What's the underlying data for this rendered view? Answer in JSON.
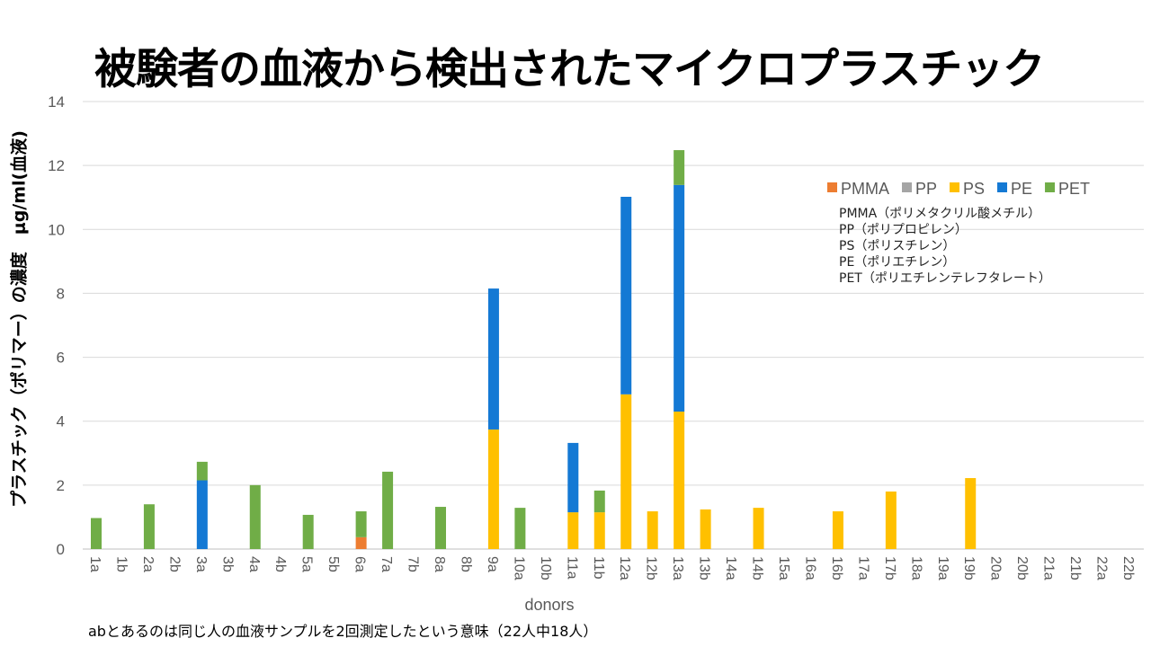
{
  "title": "被験者の血液から検出されたマイクロプラスチック",
  "footnote": "abとあるのは同じ人の血液サンプルを2回測定したという意味（22人中18人）",
  "notes": [
    "PMMA（ポリメタクリル酸メチル）",
    "PP（ポリプロピレン）",
    "PS（ポリスチレン）",
    "PE（ポリエチレン）",
    "PET（ポリエチレンテレフタレート）"
  ],
  "chart_data": {
    "type": "bar",
    "stacked": true,
    "title": "",
    "xlabel": "donors",
    "ylabel": "プラスチック（ポリマー）の濃度　μg/ml(血液)",
    "ylim": [
      0,
      14
    ],
    "yticks": [
      0,
      2,
      4,
      6,
      8,
      10,
      12,
      14
    ],
    "grid": true,
    "legend_position": "top-right",
    "categories": [
      "1a",
      "1b",
      "2a",
      "2b",
      "3a",
      "3b",
      "4a",
      "4b",
      "5a",
      "5b",
      "6a",
      "7a",
      "7b",
      "8a",
      "8b",
      "9a",
      "10a",
      "10b",
      "11a",
      "11b",
      "12a",
      "12b",
      "13a",
      "13b",
      "14a",
      "14b",
      "15a",
      "16a",
      "16b",
      "17a",
      "17b",
      "18a",
      "19a",
      "19b",
      "20a",
      "20b",
      "21a",
      "21b",
      "22a",
      "22b"
    ],
    "series": [
      {
        "name": "PMMA",
        "color": "#ED7D31",
        "values": [
          0,
          0,
          0,
          0,
          0,
          0,
          0,
          0,
          0,
          0,
          0.37,
          0,
          0,
          0,
          0,
          0,
          0,
          0,
          0,
          0,
          0,
          0,
          0,
          0,
          0,
          0,
          0,
          0,
          0,
          0,
          0,
          0,
          0,
          0,
          0,
          0,
          0,
          0,
          0,
          0
        ]
      },
      {
        "name": "PP",
        "color": "#A5A5A5",
        "values": [
          0,
          0,
          0,
          0,
          0,
          0,
          0,
          0,
          0,
          0,
          0,
          0,
          0,
          0,
          0,
          0,
          0,
          0,
          0,
          0,
          0,
          0,
          0,
          0,
          0,
          0,
          0,
          0,
          0,
          0,
          0,
          0,
          0,
          0,
          0,
          0,
          0,
          0,
          0,
          0
        ]
      },
      {
        "name": "PS",
        "color": "#FFC000",
        "values": [
          0,
          0,
          0,
          0,
          0,
          0,
          0,
          0,
          0,
          0,
          0,
          0,
          0,
          0,
          0,
          3.74,
          0,
          0,
          1.15,
          1.15,
          4.84,
          1.18,
          4.3,
          1.24,
          0,
          1.29,
          0,
          0,
          1.18,
          0,
          1.8,
          0,
          0,
          2.22,
          0,
          0,
          0,
          0,
          0,
          0
        ]
      },
      {
        "name": "PE",
        "color": "#1479D4",
        "values": [
          0,
          0,
          0,
          0,
          2.15,
          0,
          0,
          0,
          0,
          0,
          0,
          0,
          0,
          0,
          0,
          4.41,
          0,
          0,
          2.17,
          0,
          6.18,
          0,
          7.09,
          0,
          0,
          0,
          0,
          0,
          0,
          0,
          0,
          0,
          0,
          0,
          0,
          0,
          0,
          0,
          0,
          0
        ]
      },
      {
        "name": "PET",
        "color": "#70AD47",
        "values": [
          0.97,
          0,
          1.4,
          0,
          0.58,
          0,
          2.0,
          0,
          1.07,
          0,
          0.81,
          2.42,
          0,
          1.32,
          0,
          0,
          1.29,
          0,
          0,
          0.68,
          0,
          0,
          1.09,
          0,
          0,
          0,
          0,
          0,
          0,
          0,
          0,
          0,
          0,
          0,
          0,
          0,
          0,
          0,
          0,
          0
        ]
      }
    ]
  }
}
